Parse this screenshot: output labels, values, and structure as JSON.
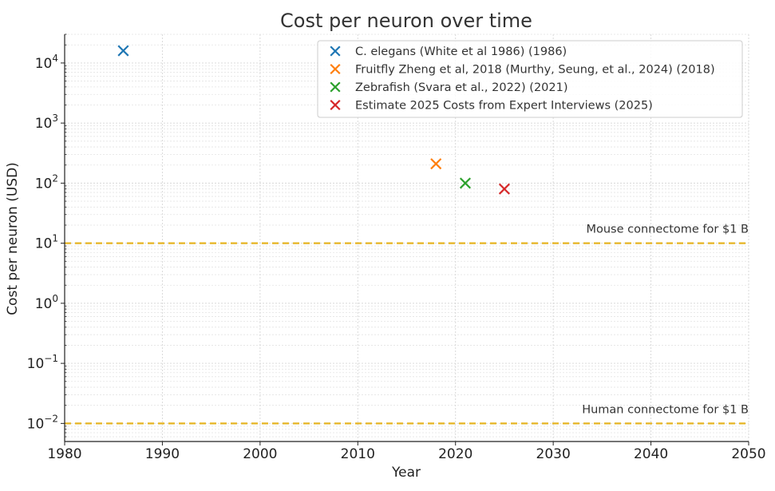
{
  "chart_data": {
    "type": "scatter",
    "title": "Cost per neuron over time",
    "xlabel": "Year",
    "ylabel": "Cost per neuron (USD)",
    "xlim": [
      1980,
      2050
    ],
    "ylim": [
      0.005,
      30000
    ],
    "yscale": "log",
    "xticks": [
      1980,
      1990,
      2000,
      2010,
      2020,
      2030,
      2040,
      2050
    ],
    "yticks": [
      {
        "value": 0.01,
        "base": "10",
        "exp": "−2"
      },
      {
        "value": 0.1,
        "base": "10",
        "exp": "−1"
      },
      {
        "value": 1,
        "base": "10",
        "exp": "0"
      },
      {
        "value": 10,
        "base": "10",
        "exp": "1"
      },
      {
        "value": 100,
        "base": "10",
        "exp": "2"
      },
      {
        "value": 1000,
        "base": "10",
        "exp": "3"
      },
      {
        "value": 10000,
        "base": "10",
        "exp": "4"
      }
    ],
    "grid": true,
    "legend_position": "top-right",
    "series": [
      {
        "name": "C. elegans (White et al 1986) (1986)",
        "color": "#1f77b4",
        "marker": "x",
        "x": [
          1986
        ],
        "y": [
          16000
        ]
      },
      {
        "name": "Fruitfly Zheng et al, 2018 (Murthy, Seung, et al., 2024) (2018)",
        "color": "#ff7f0e",
        "marker": "x",
        "x": [
          2018
        ],
        "y": [
          210
        ]
      },
      {
        "name": "Zebrafish (Svara et al., 2022) (2021)",
        "color": "#2ca02c",
        "marker": "x",
        "x": [
          2021
        ],
        "y": [
          100
        ]
      },
      {
        "name": "Estimate 2025 Costs from Expert Interviews (2025)",
        "color": "#d62728",
        "marker": "x",
        "x": [
          2025
        ],
        "y": [
          80
        ]
      }
    ],
    "reference_lines": [
      {
        "label": "Mouse connectome for $1 B",
        "y": 10,
        "color": "#e6b422",
        "style": "dashed"
      },
      {
        "label": "Human connectome for $1 B",
        "y": 0.01,
        "color": "#e6b422",
        "style": "dashed"
      }
    ]
  }
}
